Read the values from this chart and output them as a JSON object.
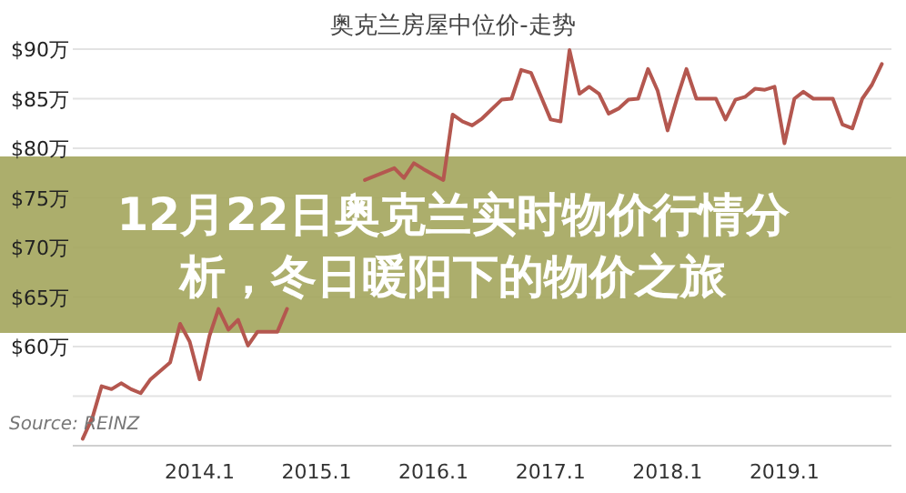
{
  "chart_data": {
    "type": "line",
    "title": "奥克兰房屋中位价-走势",
    "subtitle": "12月22日奥克兰实时物价行情分析，冬日暖阳下的物价之旅",
    "annotations": [
      "Source: REINZ"
    ],
    "series": [
      {
        "color": "#b4574f",
        "x": [
          "2013-01",
          "2013-02",
          "2013-03",
          "2013-04",
          "2013-05",
          "2013-06",
          "2013-07",
          "2013-08",
          "2013-10",
          "2013-11",
          "2013-12",
          "2014-01",
          "2014-02",
          "2014-03",
          "2014-04",
          "2014-05",
          "2014-06",
          "2014-07",
          "2014-09",
          "2014-10",
          "2014-12",
          "2015-06",
          "2015-09",
          "2015-10",
          "2015-11",
          "2015-12",
          "2016-02",
          "2016-03",
          "2016-04",
          "2016-05",
          "2016-06",
          "2016-08",
          "2016-09",
          "2016-10",
          "2016-11",
          "2017-01",
          "2017-02",
          "2017-03",
          "2017-04",
          "2017-05",
          "2017-06",
          "2017-07",
          "2017-08",
          "2017-09",
          "2017-10",
          "2017-11",
          "2017-12",
          "2018-01",
          "2018-02",
          "2018-03",
          "2018-04",
          "2018-06",
          "2018-07",
          "2018-08",
          "2018-09",
          "2018-10",
          "2018-11",
          "2018-12",
          "2019-01",
          "2019-02",
          "2019-03",
          "2019-04",
          "2019-06",
          "2019-07",
          "2019-08",
          "2019-09",
          "2019-10",
          "2019-11"
        ],
        "values": [
          50.7,
          52.9,
          56.0,
          55.7,
          56.3,
          55.7,
          55.3,
          56.7,
          58.4,
          62.3,
          60.5,
          56.7,
          61.1,
          63.8,
          61.7,
          62.7,
          60.1,
          61.5,
          61.5,
          63.8,
          null,
          76.8,
          78.0,
          77.0,
          78.5,
          77.9,
          76.8,
          83.4,
          82.7,
          82.3,
          83.0,
          84.9,
          85.0,
          87.9,
          87.6,
          82.9,
          82.7,
          89.9,
          85.5,
          86.2,
          85.5,
          83.5,
          84.0,
          84.9,
          85.0,
          88.0,
          85.8,
          81.8,
          85.2,
          88.0,
          85.0,
          85.0,
          82.9,
          84.9,
          85.2,
          86.0,
          85.9,
          86.2,
          80.5,
          85.0,
          85.7,
          85.0,
          85.0,
          82.4,
          82.0,
          85.0,
          86.4,
          88.5
        ]
      }
    ],
    "xlim": [
      "2012-12",
      "2019-12"
    ],
    "xticks": [
      {
        "value": "2014-01",
        "label": "2014.1"
      },
      {
        "value": "2015-01",
        "label": "2015.1"
      },
      {
        "value": "2016-01",
        "label": "2016.1"
      },
      {
        "value": "2017-01",
        "label": "2017.1"
      },
      {
        "value": "2018-01",
        "label": "2018.1"
      },
      {
        "value": "2019-01",
        "label": "2019.1"
      }
    ],
    "ylim": [
      50,
      90
    ],
    "yticks": [
      {
        "value": 50,
        "label": null
      },
      {
        "value": 55,
        "label": null
      },
      {
        "value": 60,
        "label": "$60万"
      },
      {
        "value": 65,
        "label": "$65万"
      },
      {
        "value": 70,
        "label": "$70万"
      },
      {
        "value": 75,
        "label": "$75万"
      },
      {
        "value": 80,
        "label": "$80万"
      },
      {
        "value": 85,
        "label": "$85万"
      },
      {
        "value": 90,
        "label": "$90万"
      }
    ],
    "grid": "y",
    "marker": "none",
    "line_style": "solid"
  }
}
